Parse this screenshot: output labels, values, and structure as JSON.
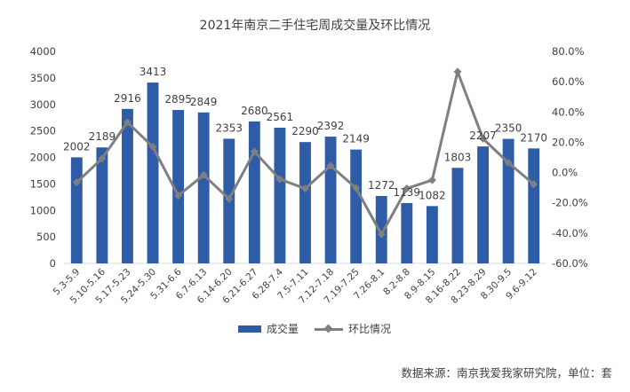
{
  "title": "2021年南京二手住宅周成交量及环比情况",
  "source": "数据来源：南京我爱我家研究院，单位：套",
  "colors": {
    "bar": "#2E5CA6",
    "line": "#7F7F7F",
    "grid": "#D9D9D9",
    "text": "#404040"
  },
  "chart_data": {
    "type": "bar+line",
    "categories": [
      "5.3-5.9",
      "5.10-5.16",
      "5.17-5.23",
      "5.24-5.30",
      "5.31-6.6",
      "6.7-6.13",
      "6.14-6.20",
      "6.21-6.27",
      "6.28-7.4",
      "7.5-7.11",
      "7.12-7.18",
      "7.19-7.25",
      "7.26-8.1",
      "8.2-8.8",
      "8.9-8.15",
      "8.16-8.22",
      "8.23-8.29",
      "8.30-9.5",
      "9.6-9.12"
    ],
    "series": [
      {
        "name": "成交量",
        "type": "bar",
        "axis": "left",
        "values": [
          2002,
          2189,
          2916,
          3413,
          2895,
          2849,
          2353,
          2680,
          2561,
          2290,
          2392,
          2149,
          1272,
          1139,
          1082,
          1803,
          2207,
          2350,
          2170
        ]
      },
      {
        "name": "环比情况",
        "type": "line",
        "axis": "right",
        "values": [
          -6.5,
          9.3,
          33.2,
          17.0,
          -15.2,
          -1.6,
          -17.4,
          13.9,
          -4.4,
          -10.6,
          4.5,
          -10.2,
          -40.8,
          -10.5,
          -5.0,
          66.6,
          22.4,
          6.5,
          -7.7
        ]
      }
    ],
    "y_left": {
      "min": 0,
      "max": 4000,
      "step": 500
    },
    "y_right": {
      "min": -60,
      "max": 80,
      "step": 20,
      "format": "percent_1dp"
    },
    "legend_position": "bottom",
    "grid": false,
    "data_labels": [
      "2002",
      "2189",
      "2916",
      "3413",
      "2895",
      "2849",
      "2353",
      "2680",
      "2561",
      "2290",
      "2392",
      "2149",
      "1272",
      "1139",
      "1082",
      "1803",
      "2207",
      "2350",
      "2170"
    ]
  }
}
